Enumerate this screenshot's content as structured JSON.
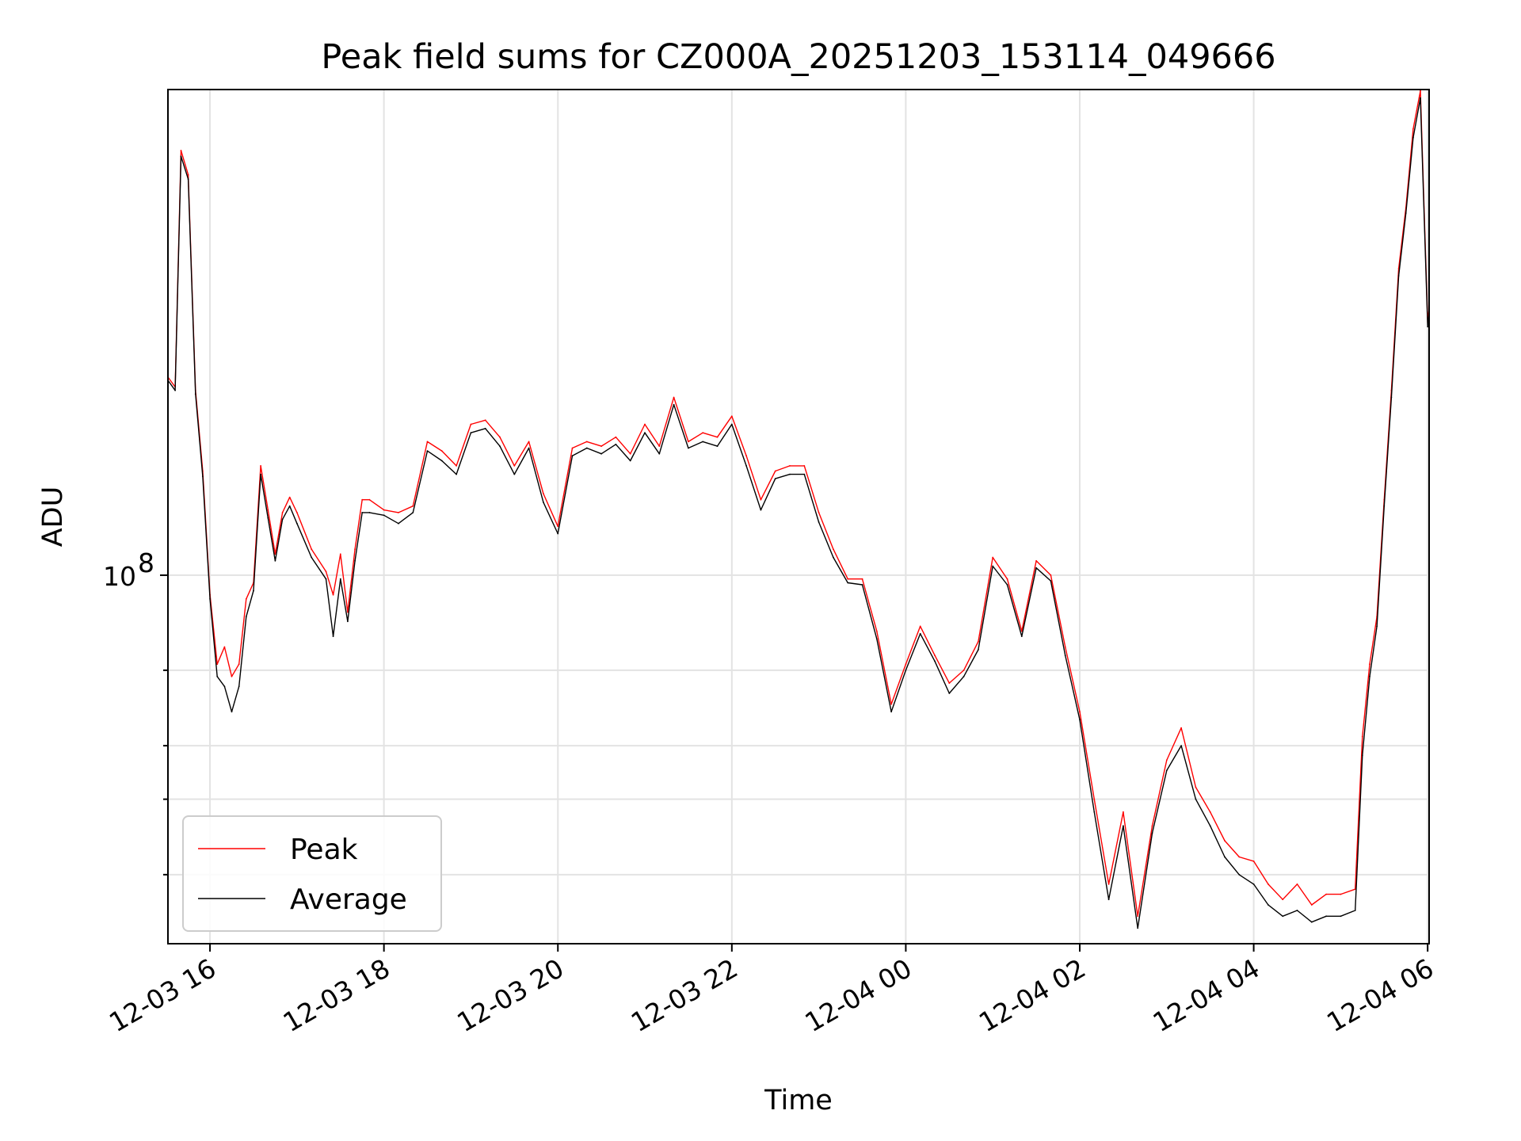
{
  "chart_data": {
    "type": "line",
    "title": "Peak field sums for CZ000A_20251203_153114_049666",
    "xlabel": "Time",
    "ylabel": "ADU",
    "y_scale": "log",
    "grid": true,
    "legend_position": "lower-left",
    "x_range": [
      "12-03 15:31",
      "12-04 06:01"
    ],
    "ylim": [
      13800000,
      1360000000
    ],
    "x_ticks": [
      "12-03 16",
      "12-03 18",
      "12-03 20",
      "12-03 22",
      "12-04 00",
      "12-04 02",
      "12-04 04",
      "12-04 06"
    ],
    "y_tick_major": {
      "value": 100000000,
      "base": "10",
      "exponent": "8"
    },
    "y_tick_minor": [
      20000000,
      30000000,
      40000000,
      60000000
    ],
    "series": [
      {
        "name": "Peak",
        "color": "#ff0000",
        "x": [
          "12-03 15:31",
          "12-03 15:36",
          "12-03 15:40",
          "12-03 15:45",
          "12-03 15:50",
          "12-03 15:55",
          "12-03 16:00",
          "12-03 16:05",
          "12-03 16:10",
          "12-03 16:15",
          "12-03 16:20",
          "12-03 16:25",
          "12-03 16:30",
          "12-03 16:35",
          "12-03 16:40",
          "12-03 16:45",
          "12-03 16:50",
          "12-03 16:55",
          "12-03 17:00",
          "12-03 17:10",
          "12-03 17:20",
          "12-03 17:25",
          "12-03 17:30",
          "12-03 17:35",
          "12-03 17:40",
          "12-03 17:45",
          "12-03 17:50",
          "12-03 18:00",
          "12-03 18:10",
          "12-03 18:20",
          "12-03 18:30",
          "12-03 18:40",
          "12-03 18:50",
          "12-03 19:00",
          "12-03 19:10",
          "12-03 19:20",
          "12-03 19:30",
          "12-03 19:40",
          "12-03 19:50",
          "12-03 20:00",
          "12-03 20:10",
          "12-03 20:20",
          "12-03 20:30",
          "12-03 20:40",
          "12-03 20:50",
          "12-03 21:00",
          "12-03 21:10",
          "12-03 21:20",
          "12-03 21:30",
          "12-03 21:40",
          "12-03 21:50",
          "12-03 22:00",
          "12-03 22:10",
          "12-03 22:20",
          "12-03 22:30",
          "12-03 22:40",
          "12-03 22:50",
          "12-03 23:00",
          "12-03 23:10",
          "12-03 23:20",
          "12-03 23:30",
          "12-03 23:40",
          "12-03 23:50",
          "12-04 00:00",
          "12-04 00:10",
          "12-04 00:20",
          "12-04 00:30",
          "12-04 00:40",
          "12-04 00:50",
          "12-04 01:00",
          "12-04 01:10",
          "12-04 01:20",
          "12-04 01:30",
          "12-04 01:40",
          "12-04 01:50",
          "12-04 02:00",
          "12-04 02:10",
          "12-04 02:20",
          "12-04 02:30",
          "12-04 02:40",
          "12-04 02:50",
          "12-04 03:00",
          "12-04 03:10",
          "12-04 03:20",
          "12-04 03:30",
          "12-04 03:40",
          "12-04 03:50",
          "12-04 04:00",
          "12-04 04:10",
          "12-04 04:20",
          "12-04 04:30",
          "12-04 04:40",
          "12-04 04:50",
          "12-04 05:00",
          "12-04 05:10",
          "12-04 05:15",
          "12-04 05:20",
          "12-04 05:25",
          "12-04 05:30",
          "12-04 05:35",
          "12-04 05:40",
          "12-04 05:45",
          "12-04 05:50",
          "12-04 05:55",
          "12-04 06:00",
          "12-04 06:01"
        ],
        "y": [
          290000000,
          275000000,
          980000000,
          860000000,
          270000000,
          175000000,
          90000000,
          62000000,
          68000000,
          58000000,
          62000000,
          88000000,
          96000000,
          180000000,
          142000000,
          112000000,
          140000000,
          152000000,
          140000000,
          115000000,
          102000000,
          90000000,
          112000000,
          82000000,
          115000000,
          150000000,
          150000000,
          142000000,
          140000000,
          145000000,
          205000000,
          195000000,
          180000000,
          225000000,
          230000000,
          210000000,
          180000000,
          205000000,
          155000000,
          130000000,
          198000000,
          205000000,
          200000000,
          210000000,
          192000000,
          225000000,
          200000000,
          260000000,
          205000000,
          215000000,
          210000000,
          235000000,
          190000000,
          150000000,
          175000000,
          180000000,
          180000000,
          140000000,
          115000000,
          98000000,
          98000000,
          74000000,
          50000000,
          62000000,
          76000000,
          65000000,
          56000000,
          60000000,
          70000000,
          110000000,
          98000000,
          74000000,
          108000000,
          100000000,
          68000000,
          48000000,
          30000000,
          19000000,
          28000000,
          16000000,
          26000000,
          37000000,
          44000000,
          32000000,
          28000000,
          24000000,
          22000000,
          21500000,
          19000000,
          17500000,
          19000000,
          17000000,
          18000000,
          18000000,
          18500000,
          42000000,
          62000000,
          80000000,
          150000000,
          270000000,
          520000000,
          720000000,
          1100000000,
          1350000000,
          390000000,
          420000000
        ]
      },
      {
        "name": "Average",
        "color": "#000000",
        "x": [
          "12-03 15:31",
          "12-03 15:36",
          "12-03 15:40",
          "12-03 15:45",
          "12-03 15:50",
          "12-03 15:55",
          "12-03 16:00",
          "12-03 16:05",
          "12-03 16:10",
          "12-03 16:15",
          "12-03 16:20",
          "12-03 16:25",
          "12-03 16:30",
          "12-03 16:35",
          "12-03 16:40",
          "12-03 16:45",
          "12-03 16:50",
          "12-03 16:55",
          "12-03 17:00",
          "12-03 17:10",
          "12-03 17:20",
          "12-03 17:25",
          "12-03 17:30",
          "12-03 17:35",
          "12-03 17:40",
          "12-03 17:45",
          "12-03 17:50",
          "12-03 18:00",
          "12-03 18:10",
          "12-03 18:20",
          "12-03 18:30",
          "12-03 18:40",
          "12-03 18:50",
          "12-03 19:00",
          "12-03 19:10",
          "12-03 19:20",
          "12-03 19:30",
          "12-03 19:40",
          "12-03 19:50",
          "12-03 20:00",
          "12-03 20:10",
          "12-03 20:20",
          "12-03 20:30",
          "12-03 20:40",
          "12-03 20:50",
          "12-03 21:00",
          "12-03 21:10",
          "12-03 21:20",
          "12-03 21:30",
          "12-03 21:40",
          "12-03 21:50",
          "12-03 22:00",
          "12-03 22:10",
          "12-03 22:20",
          "12-03 22:30",
          "12-03 22:40",
          "12-03 22:50",
          "12-03 23:00",
          "12-03 23:10",
          "12-03 23:20",
          "12-03 23:30",
          "12-03 23:40",
          "12-03 23:50",
          "12-04 00:00",
          "12-04 00:10",
          "12-04 00:20",
          "12-04 00:30",
          "12-04 00:40",
          "12-04 00:50",
          "12-04 01:00",
          "12-04 01:10",
          "12-04 01:20",
          "12-04 01:30",
          "12-04 01:40",
          "12-04 01:50",
          "12-04 02:00",
          "12-04 02:10",
          "12-04 02:20",
          "12-04 02:30",
          "12-04 02:40",
          "12-04 02:50",
          "12-04 03:00",
          "12-04 03:10",
          "12-04 03:20",
          "12-04 03:30",
          "12-04 03:40",
          "12-04 03:50",
          "12-04 04:00",
          "12-04 04:10",
          "12-04 04:20",
          "12-04 04:30",
          "12-04 04:40",
          "12-04 04:50",
          "12-04 05:00",
          "12-04 05:10",
          "12-04 05:15",
          "12-04 05:20",
          "12-04 05:25",
          "12-04 05:30",
          "12-04 05:35",
          "12-04 05:40",
          "12-04 05:45",
          "12-04 05:50",
          "12-04 05:55",
          "12-04 06:00",
          "12-04 06:01"
        ],
        "y": [
          285000000,
          270000000,
          950000000,
          840000000,
          265000000,
          170000000,
          88000000,
          58000000,
          55000000,
          48000000,
          55000000,
          80000000,
          92000000,
          172000000,
          136000000,
          108000000,
          135000000,
          145000000,
          132000000,
          110000000,
          98000000,
          72000000,
          98000000,
          78000000,
          108000000,
          140000000,
          140000000,
          138000000,
          132000000,
          140000000,
          195000000,
          185000000,
          172000000,
          215000000,
          220000000,
          200000000,
          172000000,
          198000000,
          148000000,
          125000000,
          190000000,
          198000000,
          192000000,
          202000000,
          185000000,
          215000000,
          192000000,
          250000000,
          198000000,
          205000000,
          200000000,
          225000000,
          180000000,
          142000000,
          168000000,
          172000000,
          172000000,
          133000000,
          110000000,
          96000000,
          95000000,
          71000000,
          48000000,
          60000000,
          73000000,
          63000000,
          53000000,
          58000000,
          67000000,
          105000000,
          95000000,
          72000000,
          104000000,
          97000000,
          65000000,
          46000000,
          28000000,
          17500000,
          26000000,
          15000000,
          25000000,
          35000000,
          40000000,
          30000000,
          26000000,
          22000000,
          20000000,
          19000000,
          17000000,
          16000000,
          16500000,
          15500000,
          16000000,
          16000000,
          16500000,
          38000000,
          58000000,
          76000000,
          145000000,
          260000000,
          500000000,
          700000000,
          1050000000,
          1300000000,
          380000000,
          410000000
        ]
      }
    ]
  }
}
